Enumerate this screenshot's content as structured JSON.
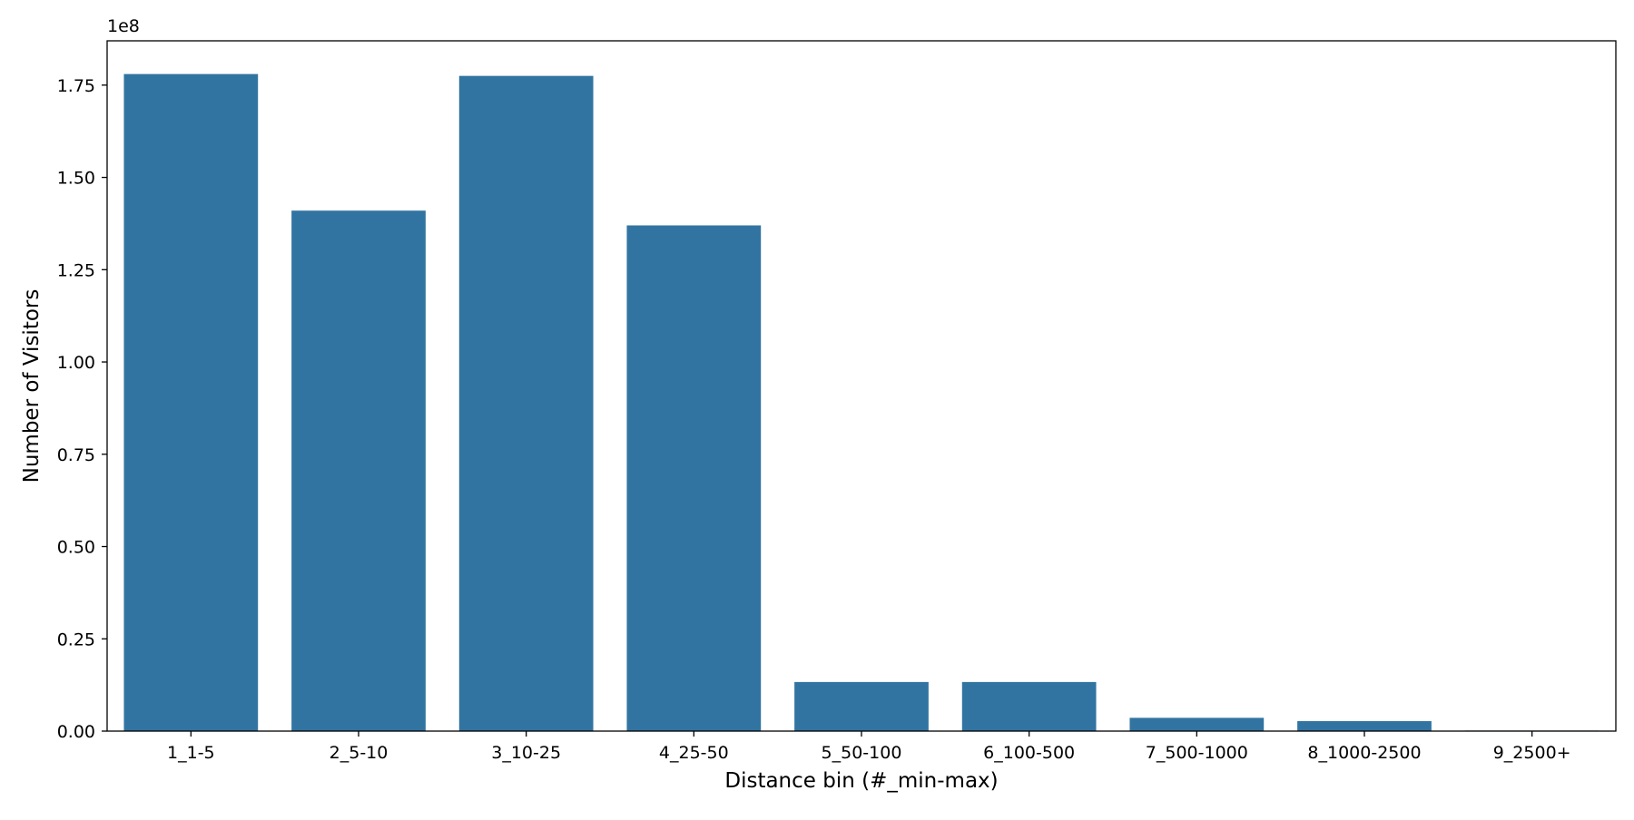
{
  "chart_data": {
    "type": "bar",
    "title": "",
    "xlabel": "Distance bin (#_min-max)",
    "ylabel": "Number of Visitors",
    "y_offset_label": "1e8",
    "categories": [
      "1_1-5",
      "2_5-10",
      "3_10-25",
      "4_25-50",
      "5_50-100",
      "6_100-500",
      "7_500-1000",
      "8_1000-2500",
      "9_2500+"
    ],
    "values": [
      178000000,
      141000000,
      177500000,
      137000000,
      13300000,
      13300000,
      3600000,
      2700000,
      150000
    ],
    "ylim": [
      0,
      187000000
    ],
    "yticks": [
      0,
      25000000,
      50000000,
      75000000,
      100000000,
      125000000,
      150000000,
      175000000
    ],
    "ytick_labels": [
      "0.00",
      "0.25",
      "0.50",
      "0.75",
      "1.00",
      "1.25",
      "1.50",
      "1.75"
    ],
    "bar_color": "#3274a1",
    "grid": false,
    "legend": "none"
  }
}
